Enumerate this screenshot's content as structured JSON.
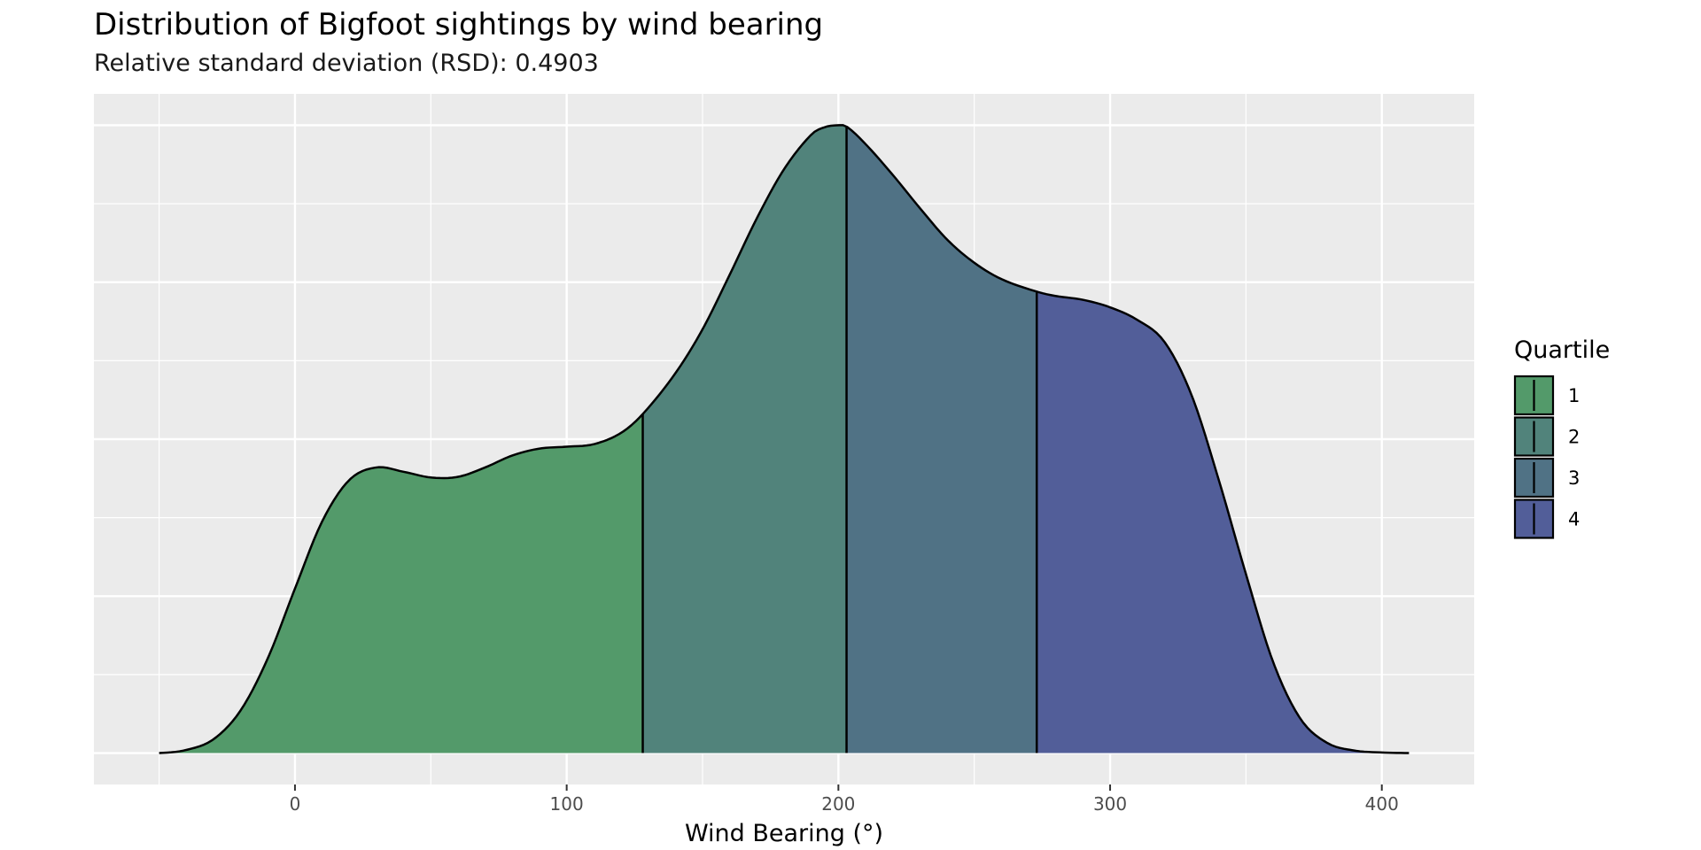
{
  "chart_data": {
    "type": "area",
    "title": "Distribution of Bigfoot sightings by wind bearing",
    "subtitle": "Relative standard deviation (RSD): 0.4903",
    "xlabel": "Wind Bearing (°)",
    "ylabel": "",
    "xlim": [
      -74,
      434
    ],
    "ylim": [
      -0.05,
      1.05
    ],
    "x_ticks": [
      0,
      100,
      200,
      300,
      400
    ],
    "grid": true,
    "legend": {
      "title": "Quartile",
      "position": "right",
      "entries": [
        {
          "label": "1",
          "color": "#539A6A"
        },
        {
          "label": "2",
          "color": "#51837B"
        },
        {
          "label": "3",
          "color": "#507285"
        },
        {
          "label": "4",
          "color": "#525E99"
        }
      ]
    },
    "quartile_boundaries": [
      128,
      203,
      273
    ],
    "density_curve": {
      "x": [
        -50,
        -40,
        -30,
        -20,
        -10,
        0,
        10,
        20,
        30,
        40,
        50,
        60,
        70,
        80,
        90,
        100,
        110,
        120,
        128,
        140,
        150,
        160,
        170,
        180,
        190,
        195,
        200,
        203,
        210,
        220,
        230,
        240,
        250,
        260,
        273,
        280,
        290,
        300,
        310,
        320,
        330,
        340,
        350,
        360,
        370,
        380,
        390,
        400,
        410
      ],
      "y": [
        0.0,
        0.005,
        0.022,
        0.068,
        0.151,
        0.262,
        0.369,
        0.435,
        0.455,
        0.448,
        0.439,
        0.44,
        0.455,
        0.474,
        0.485,
        0.488,
        0.492,
        0.51,
        0.54,
        0.605,
        0.675,
        0.762,
        0.852,
        0.93,
        0.985,
        0.997,
        1.0,
        0.998,
        0.97,
        0.921,
        0.868,
        0.818,
        0.781,
        0.755,
        0.735,
        0.728,
        0.722,
        0.71,
        0.69,
        0.655,
        0.57,
        0.435,
        0.285,
        0.145,
        0.055,
        0.016,
        0.004,
        0.001,
        0.0
      ]
    }
  }
}
